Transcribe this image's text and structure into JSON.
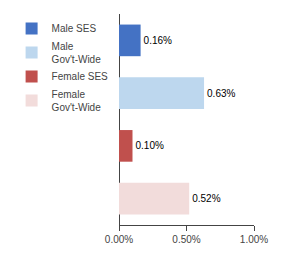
{
  "chart_data": {
    "type": "bar",
    "orientation": "horizontal",
    "categories": [
      "Male SES",
      "Male\nGov't-Wide",
      "Female SES",
      "Female\nGov't-Wide"
    ],
    "values": [
      0.16,
      0.63,
      0.1,
      0.52
    ],
    "colors": [
      "#4472C4",
      "#BDD7EE",
      "#C0504D",
      "#F2DCDB"
    ],
    "value_labels": [
      "0.16%",
      "0.63%",
      "0.10%",
      "0.52%"
    ],
    "data_labels": true,
    "xlim": [
      0,
      1.0
    ],
    "xticks": [
      {
        "value": 0.0,
        "label": "0.00%"
      },
      {
        "value": 0.5,
        "label": "0.50%"
      },
      {
        "value": 1.0,
        "label": "1.00%"
      }
    ],
    "tick_labels": "x",
    "grid": false,
    "legend": "left"
  }
}
